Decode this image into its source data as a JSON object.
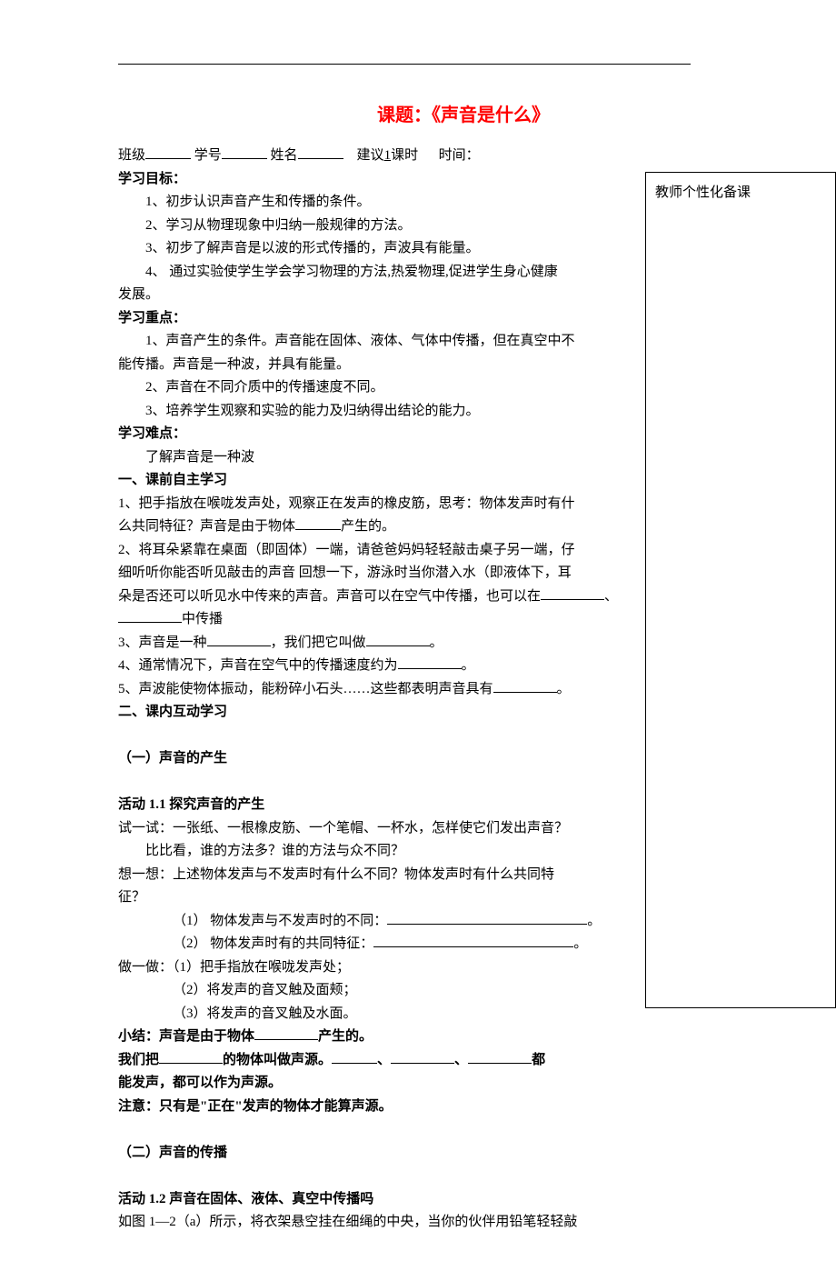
{
  "title": "课题：《声音是什么》",
  "header": {
    "label_class": "班级",
    "label_id": "学号",
    "label_name": "姓名",
    "suggest_prefix": "建议",
    "suggest_count": "1",
    "suggest_suffix": "课时",
    "time_label": "时间："
  },
  "sidebar": "教师个性化备课",
  "goal_heading": "学习目标：",
  "goals": [
    "1、初步认识声音产生和传播的条件。",
    "2、学习从物理现象中归纳一般规律的方法。",
    "3、初步了解声音是以波的形式传播的，声波具有能量。",
    "4、 通过实验使学生学会学习物理的方法,热爱物理,促进学生身心健康"
  ],
  "goal4_tail": "发展。",
  "focus_heading": "学习重点：",
  "focus": {
    "p1a": "1、声音产生的条件。声音能在固体、液体、气体中传播，但在真空中不",
    "p1b": "能传播。声音是一种波，并具有能量。",
    "p2": "2、声音在不同介质中的传播速度不同。",
    "p3": "3、培养学生观察和实验的能力及归纳得出结论的能力。"
  },
  "difficulty_heading": "学习难点：",
  "difficulty_text": "了解声音是一种波",
  "sec1_heading": "一、课前自主学习",
  "sec1": {
    "q1a": "1、把手指放在喉咙发声处，观察正在发声的橡皮筋，思考：物体发声时有什",
    "q1b": "么共同特征？声音是由于物体",
    "q1c": "产生的。",
    "q2a": "2、将耳朵紧靠在桌面（即固体）一端，请爸爸妈妈轻轻敲击桌子另一端，仔",
    "q2b": "细听听你能否听见敲击的声音 回想一下，游泳时当你潜入水（即液体下，耳",
    "q2c": "朵是否还可以听见水中传来的声音。声音可以在空气中传播，也可以在",
    "q2d": "、",
    "q2e": "中传播",
    "q3a": "3、声音是一种",
    "q3b": "，我们把它叫做",
    "q3c": "。",
    "q4a": "4、通常情况下，声音在空气中的传播速度约为",
    "q4b": "。",
    "q5a": "5、声波能使物体振动，能粉碎小石头……这些都表明声音具有",
    "q5b": "。"
  },
  "sec2_heading": "二、课内互动学习",
  "sub21_heading": "（一）声音的产生",
  "act11_heading": "活动 1.1  探究声音的产生",
  "act11": {
    "t1a": "试一试：一张纸、一根橡皮筋、一个笔帽、一杯水，怎样使它们发出声音？",
    "t1b": "比比看，谁的方法多？谁的方法与众不同？",
    "t2a": "想一想：上述物体发声与不发声时有什么不同？物体发声时有什么共同特",
    "t2b": "征？",
    "l1": "（1） 物体发声与不发声时的不同：",
    "l1end": "。",
    "l2": "（2） 物体发声时有的共同特征：",
    "l2end": "。",
    "d0": "做一做：（1）把手指放在喉咙发声处；",
    "d1": "（2）将发声的音叉触及面颊；",
    "d2": "（3）将发声的音叉触及水面。",
    "s1a": "小结：声音是由于物体",
    "s1b": "产生的。",
    "s2a": "我们把",
    "s2b": "的物体叫做声源。",
    "s2c": "、",
    "s2d": "、",
    "s2e": "都",
    "s2f": "能发声，都可以作为声源。",
    "note": "注意：只有是\"正在\"发声的物体才能算声源。"
  },
  "sub22_heading": "（二）声音的传播",
  "act12_heading": "活动 1.2  声音在固体、液体、真空中传播吗",
  "act12_text": "如图 1—2（a）所示，将衣架悬空挂在细绳的中央，当你的伙伴用铅笔轻轻敲"
}
